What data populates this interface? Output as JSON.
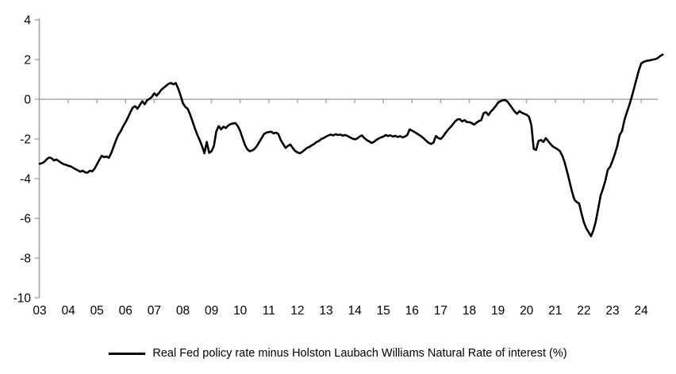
{
  "chart_data": {
    "type": "line",
    "title": "",
    "legend": "Real Fed policy rate minus Holston Laubach Williams Natural Rate of interest (%)",
    "legend_position": "bottom-center",
    "grid": "zero-line-only",
    "line_color": "#000000",
    "axis_color": "#a6a6a6",
    "text_color": "#000000",
    "ylim": [
      -10,
      4
    ],
    "y_ticks": [
      4,
      2,
      0,
      -2,
      -4,
      -6,
      -8,
      -10
    ],
    "x_tick_labels": [
      "03",
      "04",
      "05",
      "06",
      "07",
      "08",
      "09",
      "10",
      "11",
      "12",
      "13",
      "14",
      "15",
      "16",
      "17",
      "18",
      "19",
      "20",
      "21",
      "22",
      "23",
      "24"
    ],
    "x_start_year": 2003,
    "points_per_year": 12,
    "series": [
      {
        "name": "Real Fed policy rate minus Holston Laubach Williams Natural Rate of interest (%)",
        "color": "#000000",
        "values": [
          -3.25,
          -3.22,
          -3.15,
          -3.02,
          -2.93,
          -2.97,
          -3.08,
          -3.03,
          -3.12,
          -3.2,
          -3.27,
          -3.3,
          -3.35,
          -3.38,
          -3.45,
          -3.52,
          -3.58,
          -3.65,
          -3.6,
          -3.68,
          -3.7,
          -3.6,
          -3.63,
          -3.5,
          -3.28,
          -3.05,
          -2.85,
          -2.92,
          -2.88,
          -2.95,
          -2.7,
          -2.38,
          -2.05,
          -1.78,
          -1.6,
          -1.35,
          -1.15,
          -0.92,
          -0.65,
          -0.42,
          -0.35,
          -0.48,
          -0.28,
          -0.1,
          -0.25,
          -0.05,
          0.02,
          0.12,
          0.3,
          0.18,
          0.32,
          0.48,
          0.58,
          0.68,
          0.78,
          0.82,
          0.75,
          0.82,
          0.55,
          0.2,
          -0.2,
          -0.38,
          -0.48,
          -0.75,
          -1.1,
          -1.45,
          -1.78,
          -2.05,
          -2.35,
          -2.72,
          -2.15,
          -2.7,
          -2.62,
          -2.35,
          -1.62,
          -1.35,
          -1.52,
          -1.38,
          -1.45,
          -1.32,
          -1.25,
          -1.22,
          -1.2,
          -1.35,
          -1.6,
          -1.95,
          -2.3,
          -2.52,
          -2.62,
          -2.58,
          -2.5,
          -2.35,
          -2.15,
          -1.95,
          -1.75,
          -1.68,
          -1.65,
          -1.63,
          -1.72,
          -1.68,
          -1.75,
          -2.05,
          -2.25,
          -2.45,
          -2.35,
          -2.28,
          -2.45,
          -2.6,
          -2.68,
          -2.72,
          -2.65,
          -2.55,
          -2.45,
          -2.4,
          -2.32,
          -2.25,
          -2.15,
          -2.1,
          -2.0,
          -1.95,
          -1.88,
          -1.82,
          -1.78,
          -1.82,
          -1.76,
          -1.8,
          -1.78,
          -1.83,
          -1.8,
          -1.85,
          -1.92,
          -1.98,
          -2.02,
          -1.98,
          -1.88,
          -1.82,
          -1.95,
          -2.05,
          -2.12,
          -2.2,
          -2.15,
          -2.05,
          -1.98,
          -1.92,
          -1.88,
          -1.8,
          -1.85,
          -1.82,
          -1.88,
          -1.84,
          -1.9,
          -1.86,
          -1.92,
          -1.88,
          -1.8,
          -1.52,
          -1.58,
          -1.65,
          -1.72,
          -1.8,
          -1.88,
          -1.98,
          -2.1,
          -2.2,
          -2.25,
          -2.18,
          -1.85,
          -1.95,
          -2.0,
          -1.88,
          -1.7,
          -1.55,
          -1.42,
          -1.28,
          -1.12,
          -1.02,
          -1.0,
          -1.12,
          -1.05,
          -1.15,
          -1.15,
          -1.2,
          -1.28,
          -1.18,
          -1.1,
          -1.05,
          -0.7,
          -0.65,
          -0.8,
          -0.62,
          -0.5,
          -0.35,
          -0.18,
          -0.1,
          -0.05,
          -0.04,
          -0.12,
          -0.28,
          -0.45,
          -0.62,
          -0.73,
          -0.6,
          -0.68,
          -0.73,
          -0.78,
          -0.88,
          -1.3,
          -2.5,
          -2.55,
          -2.1,
          -2.05,
          -2.15,
          -1.96,
          -2.1,
          -2.25,
          -2.38,
          -2.45,
          -2.52,
          -2.62,
          -2.85,
          -3.2,
          -3.65,
          -4.15,
          -4.65,
          -5.05,
          -5.18,
          -5.25,
          -5.75,
          -6.2,
          -6.5,
          -6.7,
          -6.9,
          -6.6,
          -6.15,
          -5.5,
          -4.85,
          -4.5,
          -4.1,
          -3.55,
          -3.4,
          -3.1,
          -2.75,
          -2.35,
          -1.8,
          -1.6,
          -1.05,
          -0.65,
          -0.3,
          0.1,
          0.55,
          1.0,
          1.45,
          1.8,
          1.88,
          1.93,
          1.95,
          1.97,
          2.0,
          2.02,
          2.08,
          2.18,
          2.25
        ]
      }
    ]
  }
}
